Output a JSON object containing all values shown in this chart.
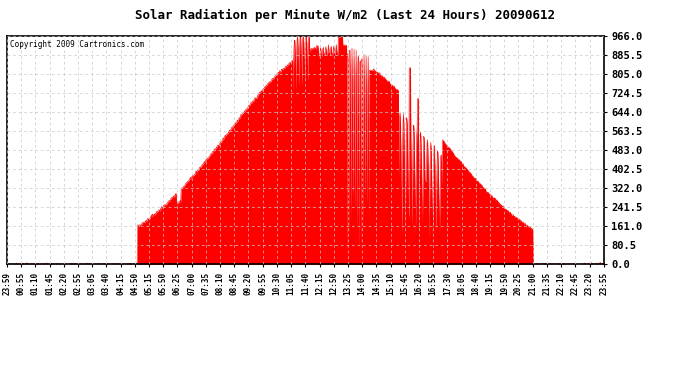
{
  "title": "Solar Radiation per Minute W/m2 (Last 24 Hours) 20090612",
  "copyright": "Copyright 2009 Cartronics.com",
  "bg_color": "#ffffff",
  "fill_color": "#ff0000",
  "grid_color": "#c8c8c8",
  "yticks": [
    0.0,
    80.5,
    161.0,
    241.5,
    322.0,
    402.5,
    483.0,
    563.5,
    644.0,
    724.5,
    805.0,
    885.5,
    966.0
  ],
  "ymax": 966.0,
  "ymin": 0.0,
  "xtick_labels": [
    "23:59",
    "00:55",
    "01:10",
    "01:45",
    "02:20",
    "02:55",
    "03:05",
    "03:40",
    "04:15",
    "04:50",
    "05:15",
    "05:50",
    "06:25",
    "07:00",
    "07:35",
    "08:10",
    "08:45",
    "09:20",
    "09:55",
    "10:30",
    "11:05",
    "11:40",
    "12:15",
    "12:50",
    "13:25",
    "14:00",
    "14:35",
    "15:10",
    "15:45",
    "16:20",
    "16:55",
    "17:30",
    "18:05",
    "18:40",
    "19:15",
    "19:50",
    "20:25",
    "21:00",
    "21:35",
    "22:10",
    "22:45",
    "23:20",
    "23:55"
  ]
}
